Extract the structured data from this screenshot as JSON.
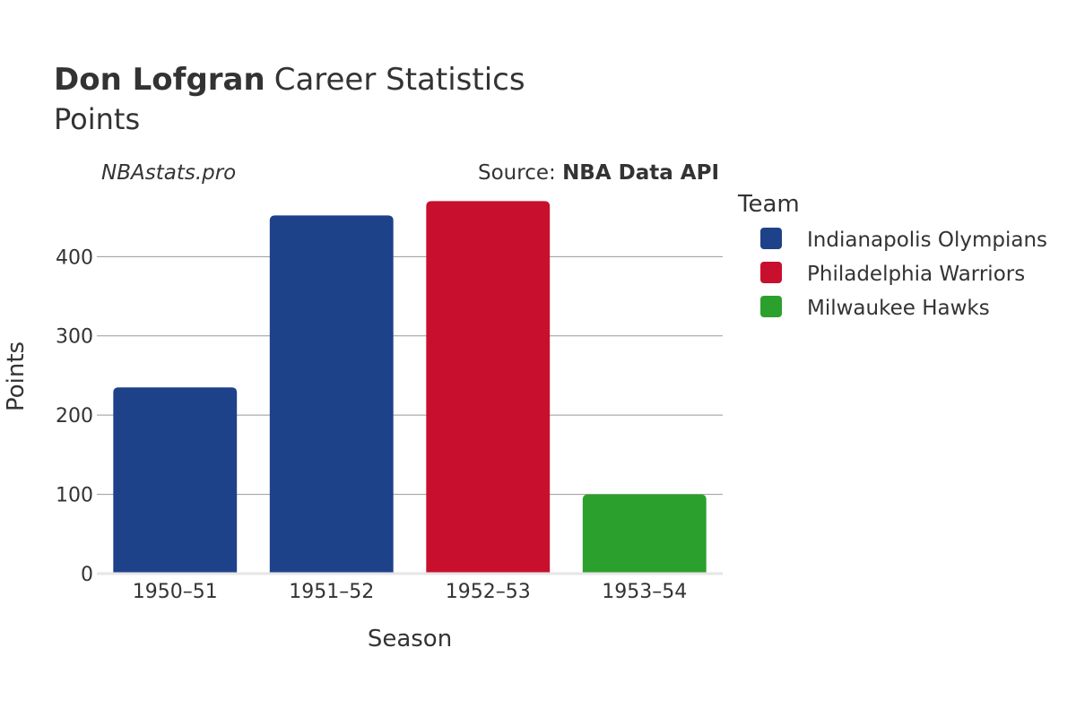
{
  "title": {
    "player": "Don Lofgran",
    "suffix": "Career Statistics",
    "subtitle": "Points"
  },
  "credit": {
    "site": "NBAstats.pro",
    "source_prefix": "Source: ",
    "source_name": "NBA Data API"
  },
  "legend": {
    "title": "Team",
    "placement": "right",
    "items": [
      {
        "label": "Indianapolis Olympians",
        "color": "#1d428a"
      },
      {
        "label": "Philadelphia Warriors",
        "color": "#c8102e"
      },
      {
        "label": "Milwaukee Hawks",
        "color": "#2ca02c"
      }
    ]
  },
  "chart_data": {
    "type": "bar",
    "title": "Don Lofgran Career Statistics",
    "subtitle": "Points",
    "xlabel": "Season",
    "ylabel": "Points",
    "categories": [
      "1950–51",
      "1951–52",
      "1952–53",
      "1953–54"
    ],
    "values": [
      235,
      452,
      470,
      100
    ],
    "bar_teams": [
      "Indianapolis Olympians",
      "Indianapolis Olympians",
      "Philadelphia Warriors",
      "Milwaukee Hawks"
    ],
    "ylim": [
      0,
      475
    ],
    "yticks": [
      0,
      100,
      200,
      300,
      400
    ],
    "grid": true
  }
}
